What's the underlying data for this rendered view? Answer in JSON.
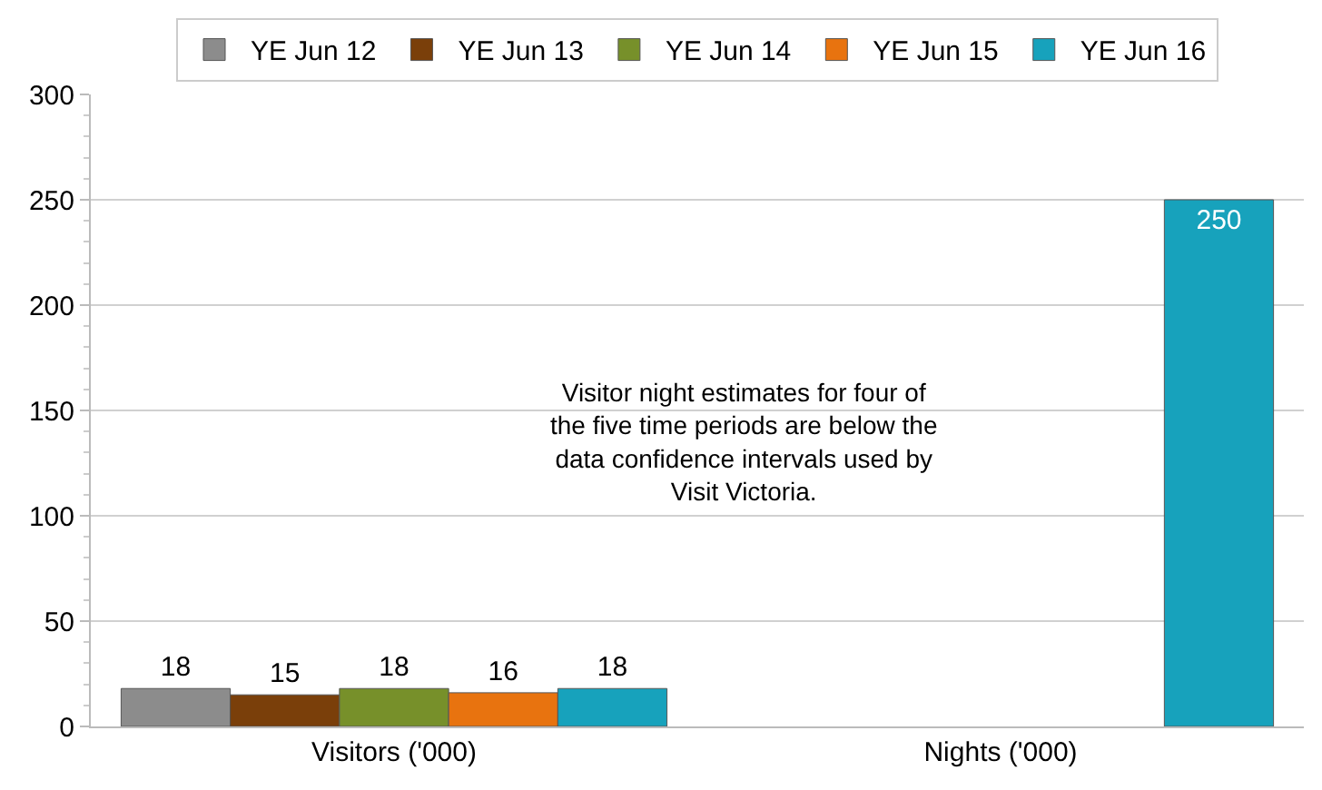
{
  "chart_data": {
    "type": "bar",
    "categories": [
      "Visitors ('000)",
      "Nights ('000)"
    ],
    "series": [
      {
        "name": "YE Jun 12",
        "color": "#8c8c8c",
        "values": [
          18,
          null
        ]
      },
      {
        "name": "YE Jun 13",
        "color": "#7a3f0a",
        "values": [
          15,
          null
        ]
      },
      {
        "name": "YE Jun 14",
        "color": "#77902a",
        "values": [
          18,
          null
        ]
      },
      {
        "name": "YE Jun 15",
        "color": "#e8730f",
        "values": [
          16,
          null
        ]
      },
      {
        "name": "YE Jun 16",
        "color": "#17a2bc",
        "values": [
          18,
          250
        ]
      }
    ],
    "ylim": [
      0,
      300
    ],
    "yticks": [
      0,
      50,
      100,
      150,
      200,
      250,
      300
    ],
    "grid": "y",
    "legend": "top",
    "data_labels": true,
    "annotations": [
      "Visitor night estimates for four of the five time periods are below the data confidence intervals used by Visit Victoria."
    ]
  }
}
